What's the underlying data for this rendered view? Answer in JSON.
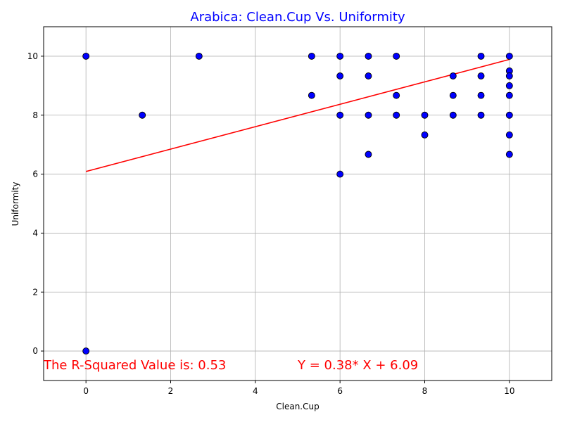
{
  "chart_data": {
    "type": "scatter",
    "title": "Arabica: Clean.Cup Vs. Uniformity",
    "xlabel": "Clean.Cup",
    "ylabel": "Uniformity",
    "xlim": [
      -1,
      11
    ],
    "ylim": [
      -1,
      11
    ],
    "xticks": [
      0,
      2,
      4,
      6,
      8,
      10
    ],
    "yticks": [
      0,
      2,
      4,
      6,
      8,
      10
    ],
    "grid": true,
    "colors": {
      "title": "#0000ff",
      "points_fill": "#0000ff",
      "points_edge": "#000000",
      "regression": "#ff0000",
      "annotations": "#ff0000",
      "grid": "#b0b0b0"
    },
    "points": [
      {
        "x": 0,
        "y": 10
      },
      {
        "x": 0,
        "y": 0
      },
      {
        "x": 1.33,
        "y": 8
      },
      {
        "x": 2.67,
        "y": 10
      },
      {
        "x": 5.33,
        "y": 10
      },
      {
        "x": 5.33,
        "y": 8.67
      },
      {
        "x": 6,
        "y": 10
      },
      {
        "x": 6,
        "y": 9.33
      },
      {
        "x": 6,
        "y": 8
      },
      {
        "x": 6,
        "y": 6
      },
      {
        "x": 6.67,
        "y": 10
      },
      {
        "x": 6.67,
        "y": 9.33
      },
      {
        "x": 6.67,
        "y": 8
      },
      {
        "x": 6.67,
        "y": 6.67
      },
      {
        "x": 7.33,
        "y": 10
      },
      {
        "x": 7.33,
        "y": 8.67
      },
      {
        "x": 7.33,
        "y": 8
      },
      {
        "x": 8,
        "y": 8
      },
      {
        "x": 8,
        "y": 7.33
      },
      {
        "x": 8.67,
        "y": 9.33
      },
      {
        "x": 8.67,
        "y": 8.67
      },
      {
        "x": 8.67,
        "y": 8
      },
      {
        "x": 9.33,
        "y": 10
      },
      {
        "x": 9.33,
        "y": 9.33
      },
      {
        "x": 9.33,
        "y": 8.67
      },
      {
        "x": 9.33,
        "y": 8
      },
      {
        "x": 10,
        "y": 10
      },
      {
        "x": 10,
        "y": 9.5
      },
      {
        "x": 10,
        "y": 9.33
      },
      {
        "x": 10,
        "y": 9
      },
      {
        "x": 10,
        "y": 8.67
      },
      {
        "x": 10,
        "y": 8
      },
      {
        "x": 10,
        "y": 7.33
      },
      {
        "x": 10,
        "y": 6.67
      }
    ],
    "regression": {
      "slope": 0.38,
      "intercept": 6.09,
      "x_range": [
        0,
        10
      ]
    },
    "annotations": [
      {
        "text": "The R-Squared Value is: 0.53",
        "x": -1,
        "y": -0.62
      },
      {
        "text": "Y = 0.38* X + 6.09",
        "x": 5,
        "y": -0.62
      }
    ]
  }
}
